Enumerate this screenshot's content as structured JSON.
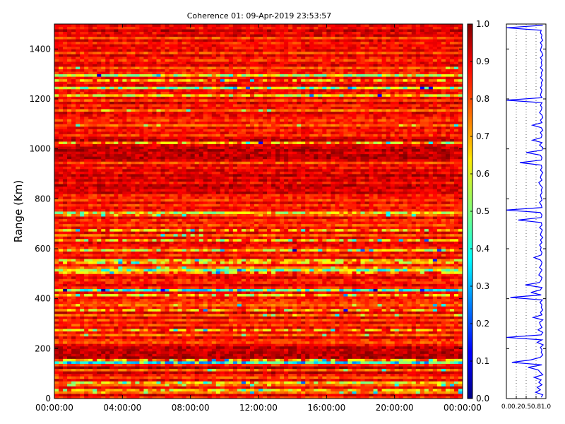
{
  "chart_data": [
    {
      "type": "heatmap",
      "title": "Coherence 01: 09-Apr-2019 23:53:57",
      "xlabel": "",
      "ylabel": "Range (Km)",
      "x_tick_labels": [
        "00:00:00",
        "04:00:00",
        "08:00:00",
        "12:00:00",
        "16:00:00",
        "20:00:00",
        "00:00:00"
      ],
      "xlim": [
        "00:00:00",
        "00:00:00"
      ],
      "ylim": [
        0,
        1500
      ],
      "y_ticks": [
        0,
        200,
        400,
        600,
        800,
        1000,
        1200,
        1400
      ],
      "colormap": "jet",
      "clim": [
        0.0,
        1.0
      ],
      "colorbar_ticks": [
        0.0,
        0.1,
        0.2,
        0.3,
        0.4,
        0.5,
        0.6,
        0.7,
        0.8,
        0.9,
        1.0
      ],
      "colorbar_tick_labels": [
        "0.0",
        "0.1",
        "0.2",
        "0.3",
        "0.4",
        "0.5",
        "0.6",
        "0.7",
        "0.8",
        "0.9",
        "1.0"
      ],
      "range_step_km": 10,
      "range_gates_coherence": [
        0.82,
        0.92,
        0.76,
        0.7,
        0.88,
        0.78,
        0.66,
        0.9,
        0.8,
        0.86,
        0.93,
        0.78,
        0.95,
        0.83,
        0.4,
        0.74,
        0.95,
        0.93,
        0.94,
        0.92,
        0.94,
        0.88,
        0.8,
        0.83,
        0.91,
        0.77,
        0.88,
        0.73,
        0.9,
        0.81,
        0.89,
        0.8,
        0.91,
        0.77,
        0.92,
        0.72,
        0.86,
        0.78,
        0.82,
        0.84,
        0.87,
        0.7,
        0.88,
        0.45,
        0.83,
        0.9,
        0.85,
        0.84,
        0.9,
        0.86,
        0.74,
        0.54,
        0.76,
        0.86,
        0.72,
        0.68,
        0.9,
        0.82,
        0.88,
        0.64,
        0.84,
        0.87,
        0.9,
        0.7,
        0.89,
        0.78,
        0.91,
        0.73,
        0.88,
        0.8,
        0.87,
        0.82,
        0.9,
        0.79,
        0.63,
        0.86,
        0.88,
        0.82,
        0.9,
        0.81,
        0.86,
        0.84,
        0.93,
        0.9,
        0.92,
        0.94,
        0.86,
        0.93,
        0.89,
        0.95,
        0.88,
        0.92,
        0.86,
        0.9,
        0.8,
        0.91,
        0.95,
        0.94,
        0.92,
        0.96,
        0.92,
        0.9,
        0.7,
        0.94,
        0.9,
        0.82,
        0.88,
        0.84,
        0.89,
        0.78,
        0.87,
        0.81,
        0.86,
        0.88,
        0.91,
        0.76,
        0.89,
        0.84,
        0.93,
        0.8,
        0.9,
        0.66,
        0.86,
        0.88,
        0.55,
        0.91,
        0.86,
        0.74,
        0.88,
        0.6,
        0.84,
        0.87,
        0.79,
        0.91,
        0.89,
        0.82,
        0.86,
        0.91,
        0.8,
        0.9,
        0.86,
        0.9,
        0.84,
        0.91,
        0.8,
        0.92,
        0.88,
        0.94,
        0.86,
        0.89
      ]
    },
    {
      "type": "line",
      "x_tick_labels": [
        "0.0",
        "0.2",
        "0.5",
        "0.8",
        "1.0"
      ],
      "x_ticks": [
        0.0,
        0.25,
        0.5,
        0.75,
        1.0
      ],
      "xlim": [
        0,
        1
      ],
      "ylim": [
        0,
        1500
      ],
      "grid": "vertical dotted",
      "line_color": "#0000ff",
      "series": [
        {
          "y": [
            0,
            10,
            20,
            30,
            40,
            50,
            60,
            70,
            80,
            90,
            100,
            110,
            120,
            130,
            140,
            150,
            160,
            170,
            180,
            190,
            200,
            210,
            220,
            230,
            240,
            250,
            260,
            270,
            280,
            290,
            300,
            310,
            320,
            330,
            340,
            350,
            360,
            370,
            380,
            390,
            400,
            410,
            420,
            430,
            440,
            450,
            460,
            470,
            480,
            490,
            500,
            510,
            520,
            530,
            540,
            550,
            560,
            570,
            580,
            590,
            600,
            610,
            620,
            630,
            640,
            650,
            660,
            670,
            680,
            690,
            700,
            710,
            720,
            730,
            740,
            750,
            760,
            770,
            780,
            790,
            800,
            810,
            820,
            830,
            840,
            850,
            860,
            870,
            880,
            890,
            900,
            910,
            920,
            930,
            940,
            950,
            960,
            970,
            980,
            990,
            1000,
            1010,
            1020,
            1030,
            1040,
            1050,
            1060,
            1070,
            1080,
            1090,
            1100,
            1110,
            1120,
            1130,
            1140,
            1150,
            1160,
            1170,
            1180,
            1190,
            1200,
            1210,
            1220,
            1230,
            1240,
            1250,
            1260,
            1270,
            1280,
            1290,
            1300,
            1310,
            1320,
            1330,
            1340,
            1350,
            1360,
            1370,
            1380,
            1390,
            1400,
            1410,
            1420,
            1430,
            1440,
            1450,
            1460,
            1470,
            1480,
            1490
          ],
          "x": [
            0.88,
            0.92,
            0.74,
            0.86,
            0.78,
            0.9,
            0.82,
            0.88,
            0.7,
            0.92,
            0.86,
            0.8,
            0.55,
            0.9,
            0.14,
            0.62,
            0.86,
            0.92,
            0.88,
            0.9,
            0.86,
            0.93,
            0.78,
            0.9,
            0.0,
            0.88,
            0.92,
            0.8,
            0.9,
            0.86,
            0.84,
            0.92,
            0.68,
            0.9,
            0.86,
            0.92,
            0.88,
            0.9,
            0.85,
            0.91,
            0.1,
            0.88,
            0.62,
            0.86,
            0.9,
            0.48,
            0.84,
            0.88,
            0.9,
            0.82,
            0.86,
            0.9,
            0.84,
            0.88,
            0.9,
            0.86,
            0.7,
            0.88,
            0.9,
            0.86,
            0.88,
            0.84,
            0.9,
            0.86,
            0.92,
            0.86,
            0.88,
            0.91,
            0.84,
            0.9,
            0.88,
            0.3,
            0.88,
            0.9,
            0.86,
            0.0,
            0.9,
            0.88,
            0.84,
            0.9,
            0.88,
            0.86,
            0.9,
            0.88,
            0.91,
            0.86,
            0.82,
            0.9,
            0.86,
            0.88,
            0.92,
            0.86,
            0.9,
            0.88,
            0.34,
            0.88,
            0.9,
            0.86,
            0.5,
            0.9,
            0.92,
            0.84,
            0.9,
            0.66,
            0.88,
            0.9,
            0.86,
            0.92,
            0.88,
            0.66,
            0.9,
            0.86,
            0.92,
            0.9,
            0.84,
            0.88,
            0.9,
            0.86,
            0.9,
            0.0,
            0.9,
            0.86,
            0.88,
            0.9,
            0.86,
            0.9,
            0.88,
            0.92,
            0.86,
            0.9,
            0.88,
            0.92,
            0.86,
            0.9,
            0.88,
            0.9,
            0.86,
            0.92,
            0.9,
            0.86,
            0.88,
            0.9,
            0.86,
            0.92,
            0.88,
            0.9,
            0.86,
            0.88,
            0.0,
            0.92
          ]
        }
      ]
    }
  ]
}
